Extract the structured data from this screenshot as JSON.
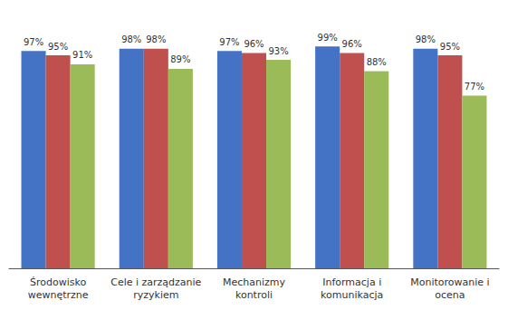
{
  "chart_data": {
    "type": "bar",
    "categories": [
      "Środowisko\nwewnętrzne",
      "Cele i zarządzanie\nryzykiem",
      "Mechanizmy\nkontroli",
      "Informacja i\nkomunikacja",
      "Monitorowanie i\nocena"
    ],
    "series": [
      {
        "color": "#4472C4",
        "values": [
          97,
          98,
          97,
          99,
          98
        ],
        "value_labels": [
          "97%",
          "98%",
          "97%",
          "99%",
          "98%"
        ]
      },
      {
        "color": "#C0504D",
        "values": [
          95,
          98,
          96,
          96,
          95
        ],
        "value_labels": [
          "95%",
          "98%",
          "96%",
          "96%",
          "95%"
        ]
      },
      {
        "color": "#9BBB59",
        "values": [
          91,
          89,
          93,
          88,
          77
        ],
        "value_labels": [
          "91%",
          "89%",
          "93%",
          "88%",
          "77%"
        ]
      }
    ],
    "ylim": [
      0,
      110
    ],
    "grid": false,
    "data_labels": true,
    "tick_labels": "x"
  }
}
